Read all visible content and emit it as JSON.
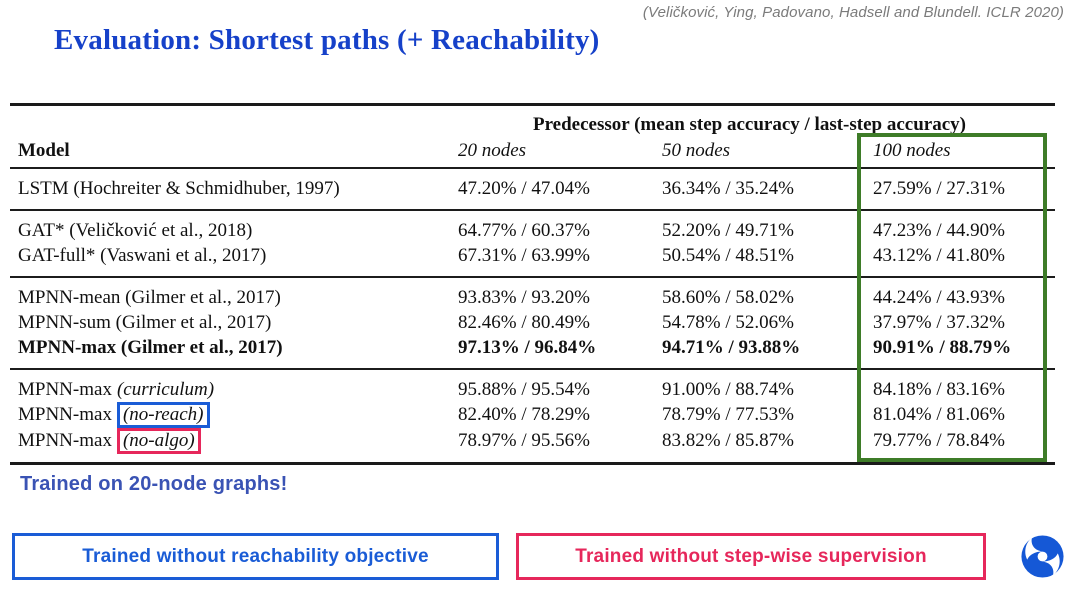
{
  "citation": "(Veličković, Ying, Padovano, Hadsell and Blundell. ICLR 2020)",
  "title": "Evaluation: Shortest paths (+ Reachability)",
  "table": {
    "span_header": "Predecessor (mean step accuracy / last-step accuracy)",
    "columns": [
      "Model",
      "20 nodes",
      "50 nodes",
      "100 nodes"
    ],
    "highlighted_column": "100 nodes",
    "groups": [
      {
        "rows": [
          {
            "model_base": "LSTM (Hochreiter & Schmidhuber, 1997)",
            "model_suffix": "",
            "suffix_box": "",
            "bold": false,
            "values": [
              "47.20% / 47.04%",
              "36.34% / 35.24%",
              "27.59% / 27.31%"
            ]
          }
        ]
      },
      {
        "rows": [
          {
            "model_base": "GAT* (Veličković et al., 2018)",
            "model_suffix": "",
            "suffix_box": "",
            "bold": false,
            "values": [
              "64.77% / 60.37%",
              "52.20% / 49.71%",
              "47.23% / 44.90%"
            ]
          },
          {
            "model_base": "GAT-full* (Vaswani et al., 2017)",
            "model_suffix": "",
            "suffix_box": "",
            "bold": false,
            "values": [
              "67.31% / 63.99%",
              "50.54% / 48.51%",
              "43.12% / 41.80%"
            ]
          }
        ]
      },
      {
        "rows": [
          {
            "model_base": "MPNN-mean (Gilmer et al., 2017)",
            "model_suffix": "",
            "suffix_box": "",
            "bold": false,
            "values": [
              "93.83% / 93.20%",
              "58.60% / 58.02%",
              "44.24% / 43.93%"
            ]
          },
          {
            "model_base": "MPNN-sum (Gilmer et al., 2017)",
            "model_suffix": "",
            "suffix_box": "",
            "bold": false,
            "values": [
              "82.46% / 80.49%",
              "54.78% / 52.06%",
              "37.97% / 37.32%"
            ]
          },
          {
            "model_base": "MPNN-max (Gilmer et al., 2017)",
            "model_suffix": "",
            "suffix_box": "",
            "bold": true,
            "values": [
              "97.13% / 96.84%",
              "94.71% / 93.88%",
              "90.91% / 88.79%"
            ]
          }
        ]
      },
      {
        "rows": [
          {
            "model_base": "MPNN-max",
            "model_suffix": "(curriculum)",
            "suffix_box": "",
            "bold": false,
            "values": [
              "95.88% / 95.54%",
              "91.00% / 88.74%",
              "84.18% / 83.16%"
            ]
          },
          {
            "model_base": "MPNN-max",
            "model_suffix": "(no-reach)",
            "suffix_box": "blue",
            "bold": false,
            "values": [
              "82.40% / 78.29%",
              "78.79% / 77.53%",
              "81.04% / 81.06%"
            ]
          },
          {
            "model_base": "MPNN-max",
            "model_suffix": "(no-algo)",
            "suffix_box": "pink",
            "bold": false,
            "values": [
              "78.97% / 95.56%",
              "83.82% / 85.87%",
              "79.77% / 78.84%"
            ]
          }
        ]
      }
    ]
  },
  "notes": {
    "trained_note": "Trained on 20-node graphs!"
  },
  "legend": {
    "blue_label": "Trained without reachability objective",
    "pink_label": "Trained without step-wise supervision"
  },
  "logo": {
    "name": "deepmind-logo"
  },
  "colors": {
    "title_blue": "#1641c9",
    "note_blue": "#3a53b4",
    "legend_blue": "#1a5cd6",
    "legend_pink": "#e6275b",
    "highlight_green": "#3e7c28",
    "citation_gray": "#7b7b7b",
    "logo_blue": "#1558d6",
    "table_text": "#111111"
  }
}
